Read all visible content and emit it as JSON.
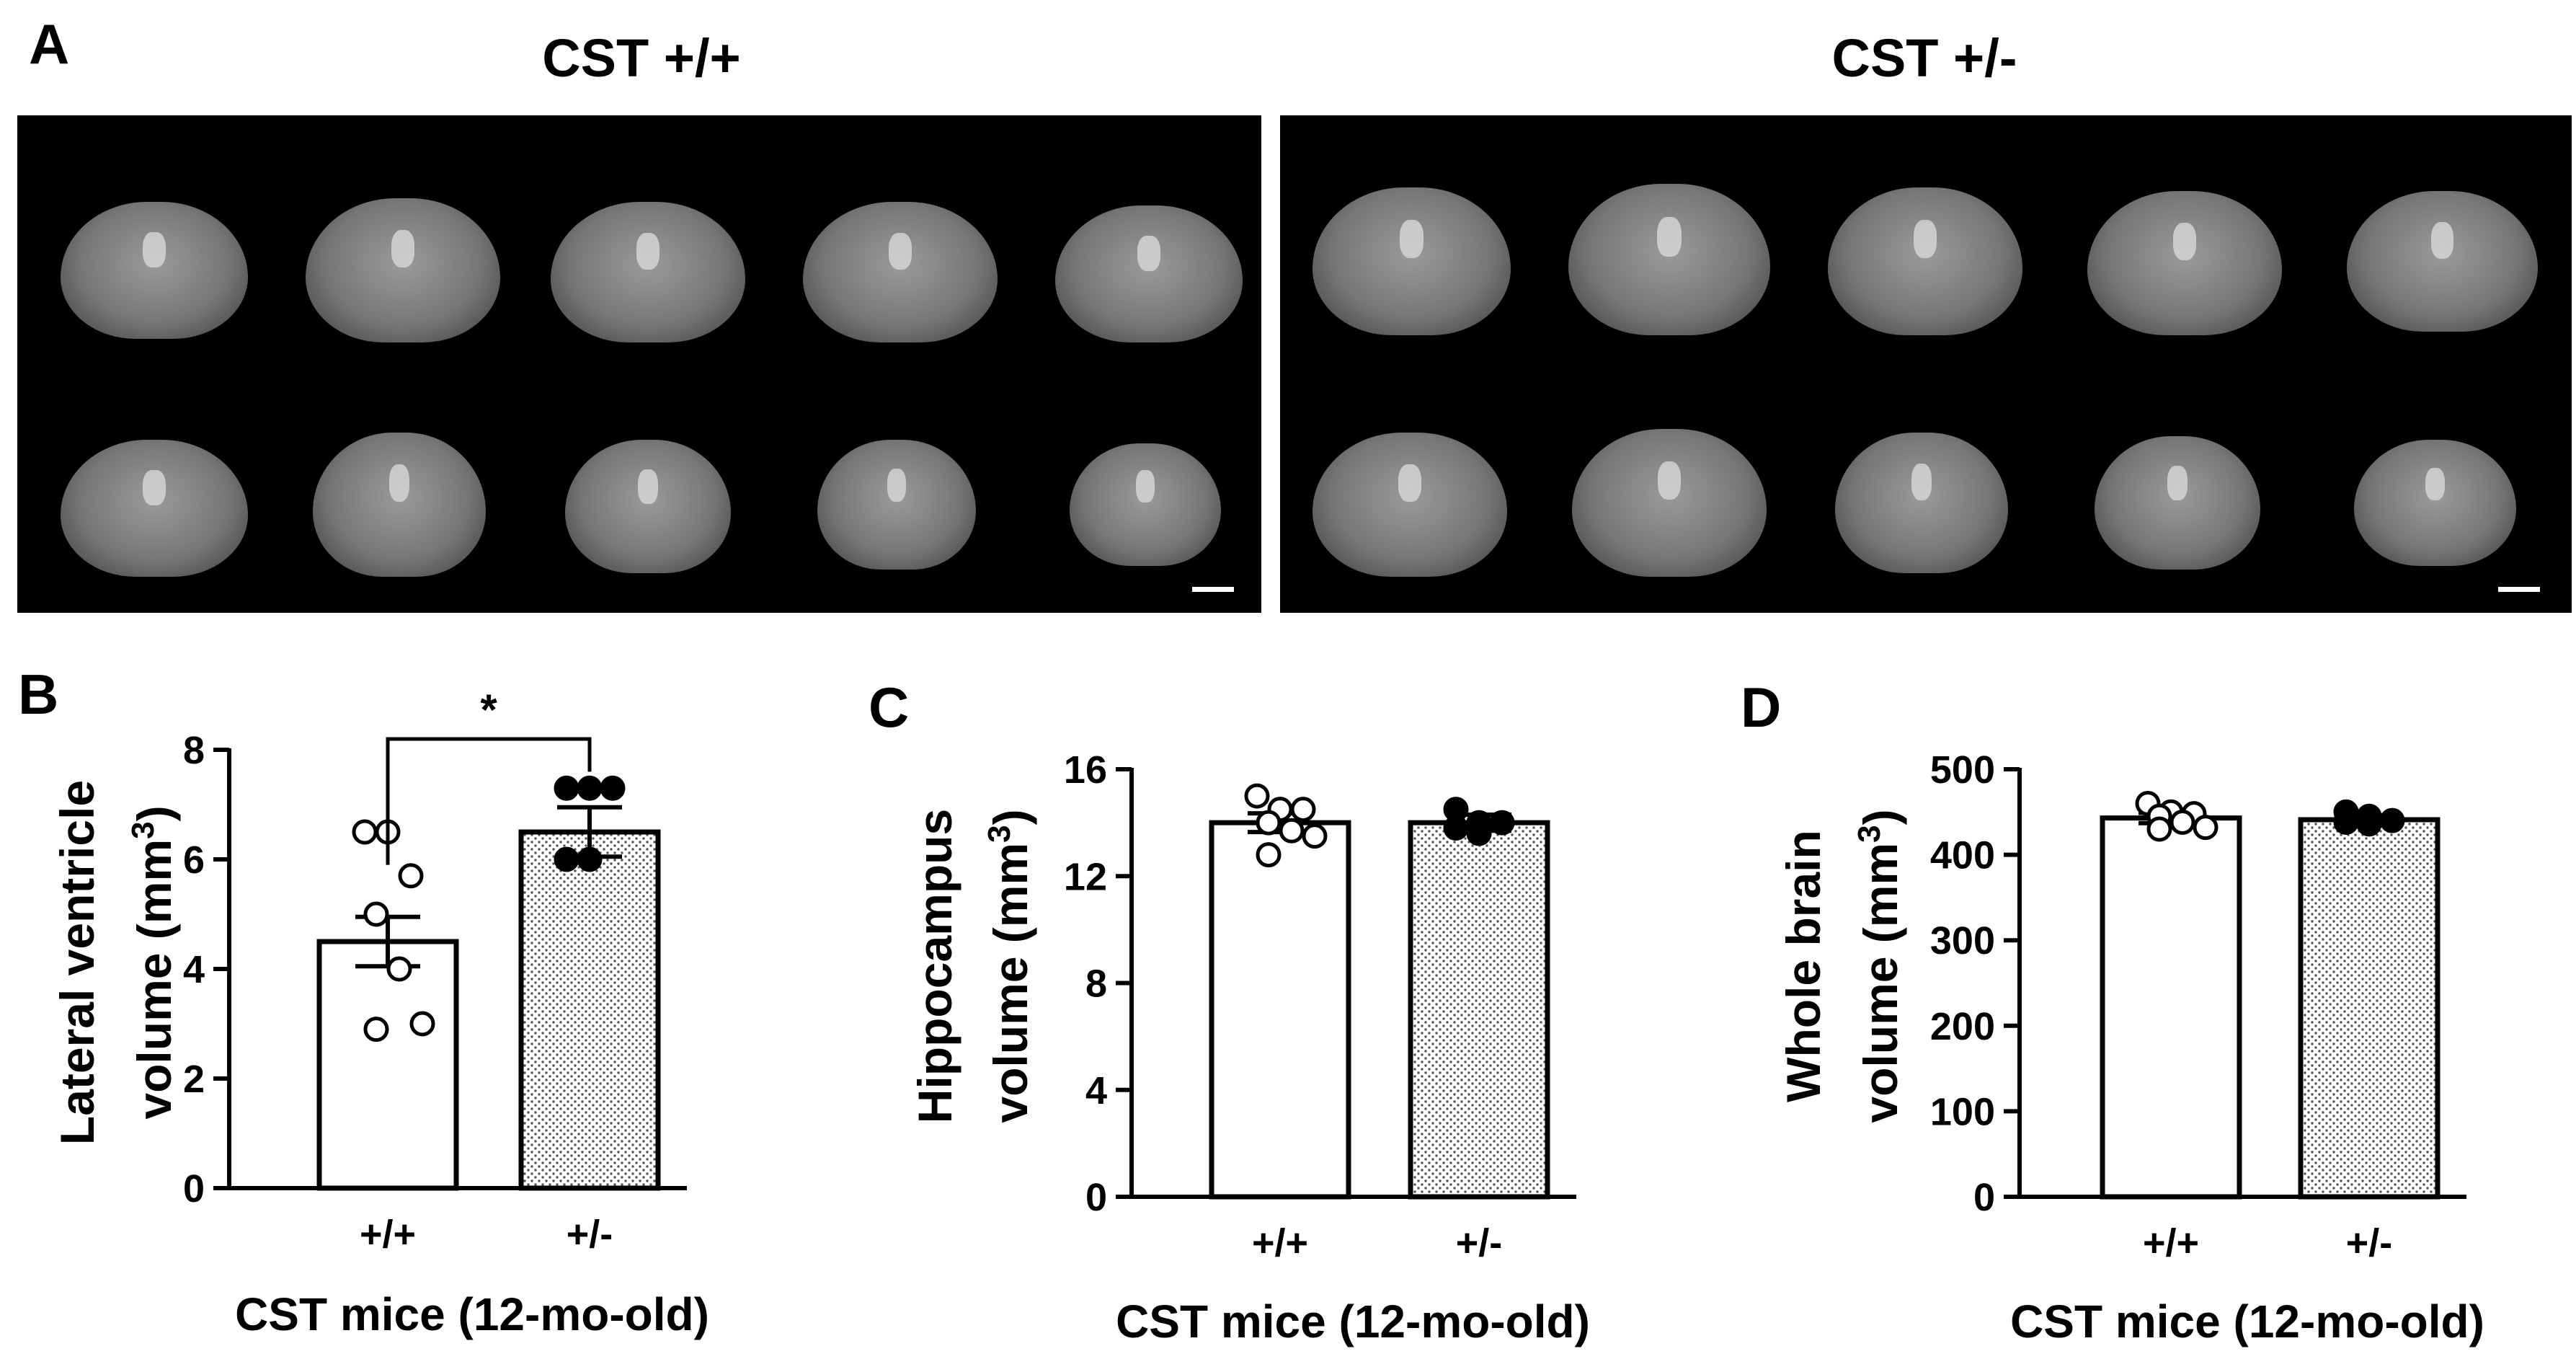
{
  "panel_a": {
    "label": "A",
    "groups": [
      {
        "title": "CST +/+",
        "slices": 10
      },
      {
        "title": "CST +/-",
        "slices": 10
      }
    ]
  },
  "chart_data": [
    {
      "type": "bar",
      "panel_label": "B",
      "categories": [
        "+/+",
        "+/-"
      ],
      "values": [
        4.5,
        6.5
      ],
      "errors": [
        0.45,
        0.45
      ],
      "points": [
        [
          6.5,
          6.5,
          5.7,
          5.0,
          4.0,
          3.0,
          2.9
        ],
        [
          7.3,
          7.3,
          7.3,
          6.0,
          6.0
        ]
      ],
      "ylim": [
        0,
        8
      ],
      "yticks": [
        0,
        2,
        4,
        6,
        8
      ],
      "ylabel_line1": "Lateral ventricle",
      "ylabel_line2": "volume (mm",
      "ylabel_sup": "3",
      "ylabel_close": ")",
      "xlabel": "CST mice (12-mo-old)",
      "significance": "*"
    },
    {
      "type": "bar",
      "panel_label": "C",
      "categories": [
        "+/+",
        "+/-"
      ],
      "values": [
        14.0,
        14.0
      ],
      "errors": [
        0.35,
        0.3
      ],
      "points": [
        [
          15.0,
          14.5,
          14.5,
          14.0,
          13.7,
          13.5,
          12.8
        ],
        [
          14.5,
          14.0,
          14.0,
          13.8,
          13.6
        ]
      ],
      "ylim": [
        0,
        16
      ],
      "yticks": [
        0,
        4,
        8,
        12,
        16
      ],
      "ylabel_line1": "Hippocampus",
      "ylabel_line2": "volume (mm",
      "ylabel_sup": "3",
      "ylabel_close": ")",
      "xlabel": "CST mice (12-mo-old)"
    },
    {
      "type": "bar",
      "panel_label": "D",
      "categories": [
        "+/+",
        "+/-"
      ],
      "values": [
        443,
        441
      ],
      "errors": [
        6,
        5
      ],
      "points": [
        [
          460,
          450,
          448,
          445,
          438,
          432,
          430
        ],
        [
          450,
          445,
          440,
          438,
          436
        ]
      ],
      "ylim": [
        0,
        500
      ],
      "yticks": [
        0,
        100,
        200,
        300,
        400,
        500
      ],
      "ylabel_line1": "Whole brain",
      "ylabel_line2": "volume (mm",
      "ylabel_sup": "3",
      "ylabel_close": ")",
      "xlabel": "CST mice (12-mo-old)"
    }
  ]
}
